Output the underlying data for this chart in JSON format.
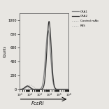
{
  "title": "",
  "xlabel": "FcεRI",
  "ylabel": "Counts",
  "background_color": "#e8e6e2",
  "plot_bg_color": "#e8e6e2",
  "legend_entries": [
    "CRA1",
    "CRA2",
    "Control mAb",
    "PBS"
  ],
  "cra1_color": "#888888",
  "cra2_color": "#333333",
  "ctrl_color": "#aaaaaa",
  "pbs_color": "#aaaaaa",
  "xlim": [
    10,
    1000000
  ],
  "ylim": [
    0,
    1100
  ],
  "yticks": [
    0,
    200,
    400,
    600,
    800,
    1000
  ],
  "figsize": [
    1.56,
    1.56
  ],
  "dpi": 100
}
